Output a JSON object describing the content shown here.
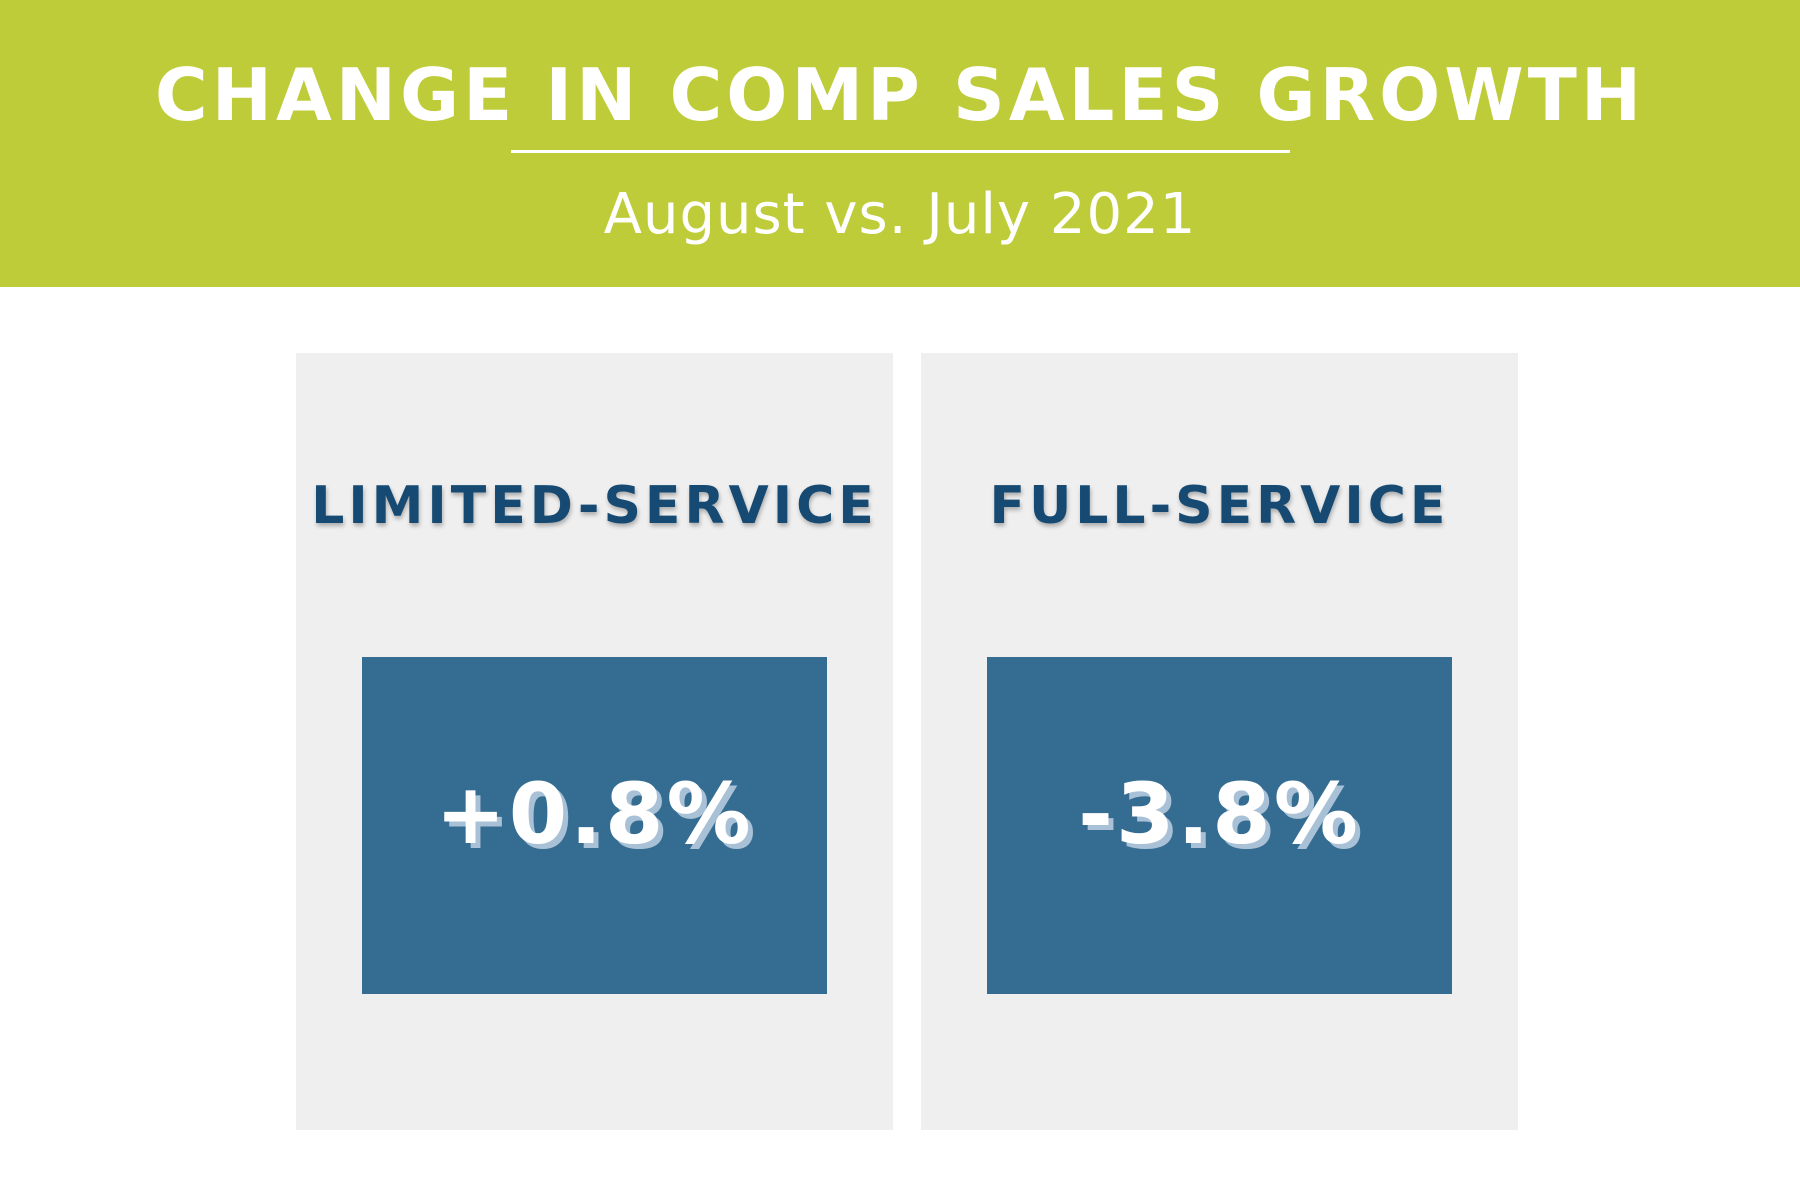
{
  "header": {
    "title": "CHANGE IN COMP SALES GROWTH",
    "subtitle": "August vs. July 2021"
  },
  "panels": [
    {
      "label": "LIMITED-SERVICE",
      "value": "+0.8%"
    },
    {
      "label": "FULL-SERVICE",
      "value": "-3.8%"
    }
  ],
  "colors": {
    "header_background": "#bfcc39",
    "panel_background": "#efefef",
    "label_text": "#164a72",
    "value_box": "#356c91",
    "value_text": "#ffffff",
    "value_shadow": "#a9c1d6"
  }
}
